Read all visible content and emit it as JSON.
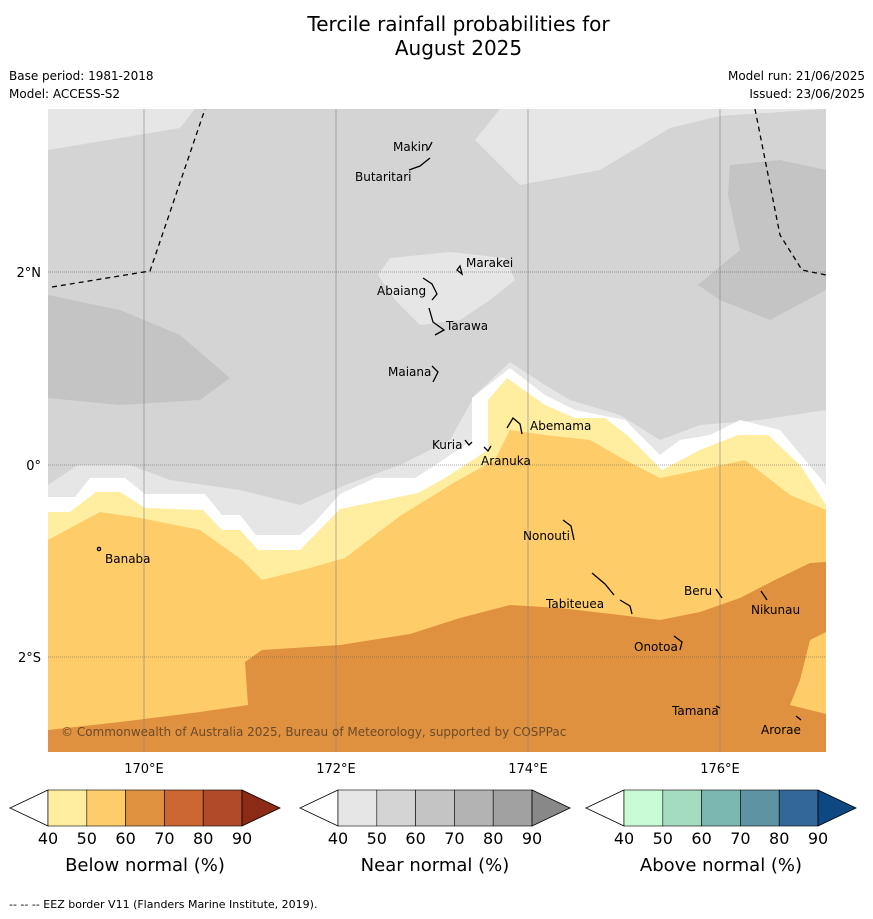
{
  "title": {
    "line1": "Tercile rainfall probabilities for",
    "line2": "August 2025"
  },
  "meta": {
    "base_period": "Base period: 1981-2018",
    "model": "Model: ACCESS-S2",
    "model_run": "Model run: 21/06/2025",
    "issued": "Issued: 23/06/2025"
  },
  "map": {
    "copyright": "© Commonwealth of Australia 2025, Bureau of Meteorology, supported by COSPPac",
    "lon_ticks": [
      "170°E",
      "172°E",
      "174°E",
      "176°E"
    ],
    "lat_ticks": [
      "2°N",
      "0°",
      "2°S"
    ],
    "islands": {
      "makin": "Makin",
      "butaritari": "Butaritari",
      "marakei": "Marakei",
      "abaiang": "Abaiang",
      "tarawa": "Tarawa",
      "maiana": "Maiana",
      "kuria": "Kuria",
      "abemama": "Abemama",
      "aranuka": "Aranuka",
      "nonouti": "Nonouti",
      "banaba": "Banaba",
      "beru": "Beru",
      "tabiteuea": "Tabiteuea",
      "nikunau": "Nikunau",
      "onotoa": "Onotoa",
      "tamana": "Tamana",
      "arorae": "Arorae"
    }
  },
  "colorbars": [
    {
      "title": "Below normal (%)",
      "ticks": [
        "40",
        "50",
        "60",
        "70",
        "80",
        "90"
      ],
      "colors": [
        "#ffeda0",
        "#fecc69",
        "#e0913f",
        "#cc6632",
        "#b04a28",
        "#8b2a15"
      ]
    },
    {
      "title": "Near normal (%)",
      "ticks": [
        "40",
        "50",
        "60",
        "70",
        "80",
        "90"
      ],
      "colors": [
        "#e6e6e6",
        "#d4d4d4",
        "#c4c4c4",
        "#b3b3b3",
        "#a1a1a1",
        "#888888"
      ]
    },
    {
      "title": "Above normal (%)",
      "ticks": [
        "40",
        "50",
        "60",
        "70",
        "80",
        "90"
      ],
      "colors": [
        "#c7fbd5",
        "#a3dcbf",
        "#7bb8b2",
        "#5d93a2",
        "#336699",
        "#0e4880"
      ]
    }
  ],
  "footer": "--  --  -- EEZ border V11 (Flanders Marine Institute, 2019)."
}
